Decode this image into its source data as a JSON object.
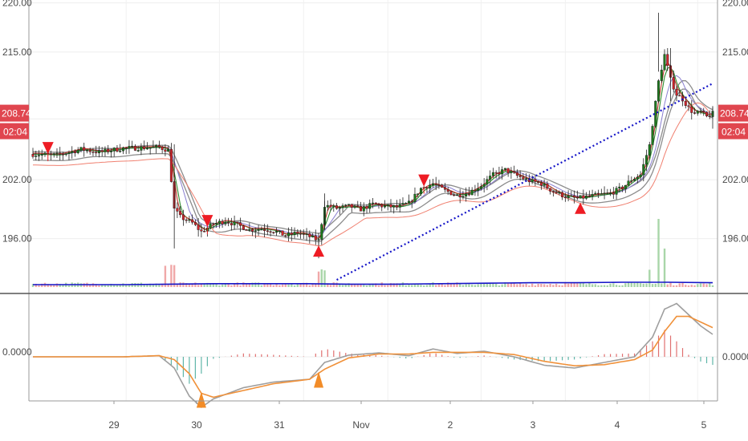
{
  "colors": {
    "up": "#1f7a1f",
    "down": "#d0262d",
    "ma_fast": "#c0392b",
    "ma_slow": "#2e8b2e",
    "ma_alt": "#8a7fd0",
    "band": "#8c8c8c",
    "trend": "#1515c8",
    "vol_ma": "#1515c8",
    "macd": "#9e9e9e",
    "signal": "#f0913a",
    "hist_pos": "#e07070",
    "hist_neg": "#5fb5a8",
    "badge": "#e0464f",
    "arrow_up": "#ee1c24",
    "arrow_dn": "#ee1c24",
    "arrow_macd": "#f28c28"
  },
  "chart_data": [
    {
      "type": "candlestick",
      "panel": "price",
      "y_ticks": [
        "220.00",
        "215.00",
        "202.00",
        "196.00"
      ],
      "ylim": [
        190.5,
        220.3
      ],
      "current_price_label": "208.74",
      "countdown_label": "02:04",
      "current_price": 208.74,
      "x_ticks": [
        "29",
        "30",
        "31",
        "Nov",
        "2",
        "3",
        "4",
        "5"
      ],
      "close_path": [
        [
          0,
          204.6
        ],
        [
          8,
          204.5
        ],
        [
          16,
          205.1
        ],
        [
          22,
          204.8
        ],
        [
          30,
          205.2
        ],
        [
          42,
          205.3
        ],
        [
          45,
          205.0
        ],
        [
          47,
          199.0
        ],
        [
          49,
          198.2
        ],
        [
          53,
          197.6
        ],
        [
          56,
          196.7
        ],
        [
          60,
          197.5
        ],
        [
          64,
          197.8
        ],
        [
          68,
          197.4
        ],
        [
          72,
          196.9
        ],
        [
          76,
          197.0
        ],
        [
          80,
          196.8
        ],
        [
          84,
          196.3
        ],
        [
          88,
          196.6
        ],
        [
          92,
          196.2
        ],
        [
          95,
          195.8
        ],
        [
          97,
          199.4
        ],
        [
          101,
          199.1
        ],
        [
          105,
          199.3
        ],
        [
          109,
          199.0
        ],
        [
          113,
          199.5
        ],
        [
          117,
          199.3
        ],
        [
          121,
          199.2
        ],
        [
          125,
          199.6
        ],
        [
          129,
          201.1
        ],
        [
          133,
          201.6
        ],
        [
          137,
          200.9
        ],
        [
          141,
          200.4
        ],
        [
          145,
          200.7
        ],
        [
          149,
          201.4
        ],
        [
          153,
          202.5
        ],
        [
          157,
          203.0
        ],
        [
          161,
          202.4
        ],
        [
          165,
          201.9
        ],
        [
          169,
          201.6
        ],
        [
          173,
          200.8
        ],
        [
          177,
          200.3
        ],
        [
          181,
          200.1
        ],
        [
          185,
          200.3
        ],
        [
          189,
          200.5
        ],
        [
          192,
          200.6
        ],
        [
          196,
          201.2
        ],
        [
          199,
          202.0
        ],
        [
          202,
          202.5
        ],
        [
          205,
          205.5
        ],
        [
          208,
          212.0
        ],
        [
          210,
          214.7
        ],
        [
          212,
          212.2
        ],
        [
          214,
          210.7
        ],
        [
          216,
          210.2
        ],
        [
          218,
          209.3
        ],
        [
          220,
          208.7
        ],
        [
          222,
          208.9
        ],
        [
          224,
          208.4
        ],
        [
          226,
          208.74
        ]
      ],
      "volume_line": [
        0.05,
        0.05,
        0.05,
        0.06,
        0.07,
        0.07,
        0.07,
        0.06,
        0.06,
        0.07,
        0.08,
        0.09,
        0.09,
        0.1,
        0.1,
        0.09
      ],
      "trendline": {
        "from": [
          101,
          191.8
        ],
        "to": [
          226,
          211.8
        ],
        "style": "dotted"
      },
      "markers_down": [
        5,
        58,
        130
      ],
      "markers_up": [
        95,
        182
      ]
    },
    {
      "type": "macd",
      "panel": "oscillator",
      "y_ticks": [
        "0.0000",
        "0.0000"
      ],
      "ylim": [
        -1.0,
        1.0
      ],
      "macd_path": [
        [
          0,
          0.0
        ],
        [
          30,
          0.0
        ],
        [
          42,
          0.02
        ],
        [
          47,
          -0.2
        ],
        [
          52,
          -0.7
        ],
        [
          56,
          -0.9
        ],
        [
          60,
          -0.75
        ],
        [
          70,
          -0.55
        ],
        [
          80,
          -0.45
        ],
        [
          92,
          -0.4
        ],
        [
          97,
          -0.1
        ],
        [
          105,
          0.03
        ],
        [
          115,
          0.07
        ],
        [
          125,
          0.02
        ],
        [
          133,
          0.14
        ],
        [
          141,
          0.06
        ],
        [
          150,
          0.1
        ],
        [
          160,
          0.0
        ],
        [
          170,
          -0.15
        ],
        [
          180,
          -0.2
        ],
        [
          190,
          -0.1
        ],
        [
          200,
          0.0
        ],
        [
          206,
          0.35
        ],
        [
          210,
          0.85
        ],
        [
          214,
          0.95
        ],
        [
          218,
          0.75
        ],
        [
          222,
          0.55
        ],
        [
          226,
          0.4
        ]
      ],
      "signal_path": [
        [
          0,
          0.0
        ],
        [
          30,
          0.0
        ],
        [
          42,
          0.02
        ],
        [
          47,
          -0.05
        ],
        [
          52,
          -0.3
        ],
        [
          56,
          -0.65
        ],
        [
          60,
          -0.72
        ],
        [
          70,
          -0.6
        ],
        [
          80,
          -0.48
        ],
        [
          92,
          -0.4
        ],
        [
          97,
          -0.22
        ],
        [
          105,
          -0.02
        ],
        [
          115,
          0.05
        ],
        [
          125,
          0.05
        ],
        [
          133,
          0.08
        ],
        [
          141,
          0.08
        ],
        [
          150,
          0.08
        ],
        [
          160,
          0.04
        ],
        [
          170,
          -0.08
        ],
        [
          180,
          -0.16
        ],
        [
          190,
          -0.14
        ],
        [
          200,
          -0.05
        ],
        [
          206,
          0.12
        ],
        [
          210,
          0.45
        ],
        [
          214,
          0.72
        ],
        [
          218,
          0.72
        ],
        [
          222,
          0.62
        ],
        [
          226,
          0.52
        ]
      ],
      "signal_markers": [
        56,
        95
      ]
    }
  ]
}
